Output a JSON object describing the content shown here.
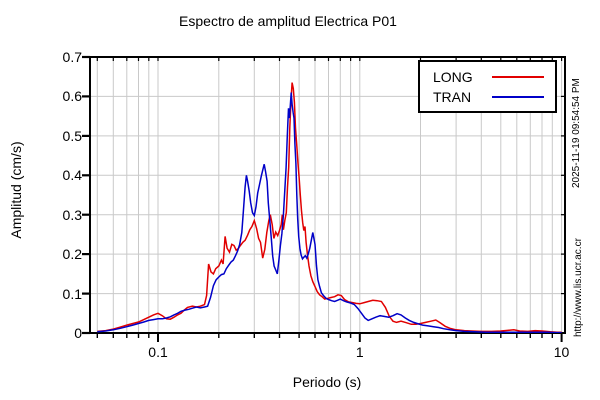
{
  "title": "Espectro de amplitud Electrica P01",
  "stamp": {
    "datetime": "2025-11-19 09:54:54 PM",
    "website": "http://www.lis.ucr.ac.cr"
  },
  "chart_data": {
    "type": "line",
    "title": "Espectro de amplitud Electrica P01",
    "xlabel": "Periodo (s)",
    "ylabel": "Amplitud (cm/s)",
    "xscale": "log",
    "xlim": [
      0.046,
      10.4
    ],
    "ylim": [
      0,
      0.7
    ],
    "grid": true,
    "legend_position": "top-right",
    "x_ticks": [
      {
        "value": 0.1,
        "label": "0.1"
      },
      {
        "value": 1,
        "label": "1"
      },
      {
        "value": 10,
        "label": "10"
      }
    ],
    "y_ticks": [
      {
        "value": 0,
        "label": "0"
      },
      {
        "value": 0.1,
        "label": "0.1"
      },
      {
        "value": 0.2,
        "label": "0.2"
      },
      {
        "value": 0.3,
        "label": "0.3"
      },
      {
        "value": 0.4,
        "label": "0.4"
      },
      {
        "value": 0.5,
        "label": "0.5"
      },
      {
        "value": 0.6,
        "label": "0.6"
      },
      {
        "value": 0.7,
        "label": "0.7"
      }
    ],
    "colors": {
      "grid": "#c9c9c9",
      "border": "#000000",
      "background": "#ffffff"
    },
    "series": [
      {
        "name": "LONG",
        "color": "#e10000",
        "points": [
          [
            0.05,
            0.004
          ],
          [
            0.055,
            0.006
          ],
          [
            0.06,
            0.01
          ],
          [
            0.065,
            0.015
          ],
          [
            0.07,
            0.02
          ],
          [
            0.075,
            0.024
          ],
          [
            0.08,
            0.028
          ],
          [
            0.085,
            0.034
          ],
          [
            0.09,
            0.04
          ],
          [
            0.095,
            0.046
          ],
          [
            0.1,
            0.05
          ],
          [
            0.105,
            0.044
          ],
          [
            0.11,
            0.036
          ],
          [
            0.115,
            0.035
          ],
          [
            0.12,
            0.04
          ],
          [
            0.125,
            0.046
          ],
          [
            0.13,
            0.05
          ],
          [
            0.135,
            0.058
          ],
          [
            0.14,
            0.065
          ],
          [
            0.148,
            0.068
          ],
          [
            0.155,
            0.066
          ],
          [
            0.162,
            0.068
          ],
          [
            0.17,
            0.072
          ],
          [
            0.174,
            0.095
          ],
          [
            0.178,
            0.175
          ],
          [
            0.183,
            0.155
          ],
          [
            0.188,
            0.15
          ],
          [
            0.193,
            0.163
          ],
          [
            0.2,
            0.17
          ],
          [
            0.206,
            0.185
          ],
          [
            0.21,
            0.175
          ],
          [
            0.215,
            0.245
          ],
          [
            0.22,
            0.215
          ],
          [
            0.226,
            0.205
          ],
          [
            0.232,
            0.225
          ],
          [
            0.238,
            0.222
          ],
          [
            0.244,
            0.21
          ],
          [
            0.25,
            0.214
          ],
          [
            0.256,
            0.222
          ],
          [
            0.263,
            0.23
          ],
          [
            0.27,
            0.235
          ],
          [
            0.278,
            0.248
          ],
          [
            0.285,
            0.262
          ],
          [
            0.292,
            0.27
          ],
          [
            0.3,
            0.285
          ],
          [
            0.308,
            0.265
          ],
          [
            0.315,
            0.24
          ],
          [
            0.322,
            0.23
          ],
          [
            0.33,
            0.19
          ],
          [
            0.338,
            0.212
          ],
          [
            0.346,
            0.255
          ],
          [
            0.354,
            0.285
          ],
          [
            0.36,
            0.3
          ],
          [
            0.368,
            0.275
          ],
          [
            0.375,
            0.24
          ],
          [
            0.383,
            0.256
          ],
          [
            0.392,
            0.247
          ],
          [
            0.4,
            0.26
          ],
          [
            0.408,
            0.275
          ],
          [
            0.413,
            0.3
          ],
          [
            0.418,
            0.262
          ],
          [
            0.425,
            0.285
          ],
          [
            0.432,
            0.305
          ],
          [
            0.438,
            0.37
          ],
          [
            0.444,
            0.42
          ],
          [
            0.45,
            0.52
          ],
          [
            0.456,
            0.59
          ],
          [
            0.462,
            0.635
          ],
          [
            0.468,
            0.62
          ],
          [
            0.474,
            0.585
          ],
          [
            0.48,
            0.52
          ],
          [
            0.487,
            0.475
          ],
          [
            0.494,
            0.43
          ],
          [
            0.5,
            0.395
          ],
          [
            0.507,
            0.35
          ],
          [
            0.514,
            0.31
          ],
          [
            0.521,
            0.28
          ],
          [
            0.528,
            0.26
          ],
          [
            0.535,
            0.27
          ],
          [
            0.542,
            0.23
          ],
          [
            0.55,
            0.2
          ],
          [
            0.56,
            0.17
          ],
          [
            0.572,
            0.145
          ],
          [
            0.585,
            0.13
          ],
          [
            0.6,
            0.118
          ],
          [
            0.615,
            0.105
          ],
          [
            0.632,
            0.097
          ],
          [
            0.65,
            0.092
          ],
          [
            0.67,
            0.086
          ],
          [
            0.695,
            0.088
          ],
          [
            0.72,
            0.09
          ],
          [
            0.75,
            0.092
          ],
          [
            0.78,
            0.097
          ],
          [
            0.81,
            0.095
          ],
          [
            0.84,
            0.085
          ],
          [
            0.88,
            0.079
          ],
          [
            0.92,
            0.077
          ],
          [
            0.96,
            0.075
          ],
          [
            1.0,
            0.074
          ],
          [
            1.05,
            0.077
          ],
          [
            1.1,
            0.08
          ],
          [
            1.16,
            0.083
          ],
          [
            1.22,
            0.082
          ],
          [
            1.28,
            0.08
          ],
          [
            1.34,
            0.065
          ],
          [
            1.4,
            0.042
          ],
          [
            1.46,
            0.03
          ],
          [
            1.52,
            0.027
          ],
          [
            1.6,
            0.03
          ],
          [
            1.7,
            0.026
          ],
          [
            1.8,
            0.022
          ],
          [
            1.9,
            0.022
          ],
          [
            2.0,
            0.024
          ],
          [
            2.12,
            0.027
          ],
          [
            2.25,
            0.03
          ],
          [
            2.38,
            0.033
          ],
          [
            2.5,
            0.026
          ],
          [
            2.65,
            0.017
          ],
          [
            2.8,
            0.012
          ],
          [
            3.0,
            0.008
          ],
          [
            3.3,
            0.006
          ],
          [
            3.6,
            0.005
          ],
          [
            4.0,
            0.004
          ],
          [
            4.5,
            0.004
          ],
          [
            5.0,
            0.005
          ],
          [
            5.5,
            0.007
          ],
          [
            5.8,
            0.008
          ],
          [
            6.2,
            0.005
          ],
          [
            6.8,
            0.004
          ],
          [
            7.4,
            0.006
          ],
          [
            8.0,
            0.005
          ],
          [
            8.8,
            0.003
          ],
          [
            9.5,
            0.002
          ],
          [
            10.0,
            0.002
          ]
        ]
      },
      {
        "name": "TRAN",
        "color": "#0000c8",
        "points": [
          [
            0.05,
            0.003
          ],
          [
            0.055,
            0.005
          ],
          [
            0.06,
            0.008
          ],
          [
            0.065,
            0.012
          ],
          [
            0.07,
            0.016
          ],
          [
            0.075,
            0.02
          ],
          [
            0.08,
            0.024
          ],
          [
            0.085,
            0.028
          ],
          [
            0.09,
            0.032
          ],
          [
            0.095,
            0.034
          ],
          [
            0.1,
            0.036
          ],
          [
            0.105,
            0.036
          ],
          [
            0.11,
            0.038
          ],
          [
            0.115,
            0.041
          ],
          [
            0.12,
            0.046
          ],
          [
            0.125,
            0.05
          ],
          [
            0.13,
            0.055
          ],
          [
            0.136,
            0.058
          ],
          [
            0.142,
            0.06
          ],
          [
            0.148,
            0.063
          ],
          [
            0.155,
            0.066
          ],
          [
            0.162,
            0.064
          ],
          [
            0.17,
            0.066
          ],
          [
            0.176,
            0.068
          ],
          [
            0.182,
            0.09
          ],
          [
            0.188,
            0.12
          ],
          [
            0.194,
            0.135
          ],
          [
            0.2,
            0.142
          ],
          [
            0.206,
            0.148
          ],
          [
            0.212,
            0.15
          ],
          [
            0.218,
            0.163
          ],
          [
            0.224,
            0.172
          ],
          [
            0.23,
            0.18
          ],
          [
            0.236,
            0.185
          ],
          [
            0.242,
            0.196
          ],
          [
            0.248,
            0.208
          ],
          [
            0.254,
            0.225
          ],
          [
            0.26,
            0.255
          ],
          [
            0.265,
            0.31
          ],
          [
            0.27,
            0.37
          ],
          [
            0.274,
            0.4
          ],
          [
            0.278,
            0.385
          ],
          [
            0.283,
            0.36
          ],
          [
            0.288,
            0.33
          ],
          [
            0.294,
            0.305
          ],
          [
            0.3,
            0.298
          ],
          [
            0.306,
            0.32
          ],
          [
            0.312,
            0.355
          ],
          [
            0.318,
            0.375
          ],
          [
            0.325,
            0.398
          ],
          [
            0.331,
            0.415
          ],
          [
            0.336,
            0.428
          ],
          [
            0.341,
            0.41
          ],
          [
            0.347,
            0.385
          ],
          [
            0.352,
            0.33
          ],
          [
            0.358,
            0.285
          ],
          [
            0.364,
            0.24
          ],
          [
            0.37,
            0.195
          ],
          [
            0.376,
            0.17
          ],
          [
            0.383,
            0.16
          ],
          [
            0.39,
            0.15
          ],
          [
            0.397,
            0.185
          ],
          [
            0.404,
            0.222
          ],
          [
            0.411,
            0.252
          ],
          [
            0.418,
            0.3
          ],
          [
            0.425,
            0.362
          ],
          [
            0.431,
            0.42
          ],
          [
            0.437,
            0.5
          ],
          [
            0.443,
            0.57
          ],
          [
            0.448,
            0.545
          ],
          [
            0.453,
            0.58
          ],
          [
            0.457,
            0.61
          ],
          [
            0.462,
            0.58
          ],
          [
            0.467,
            0.56
          ],
          [
            0.472,
            0.545
          ],
          [
            0.477,
            0.48
          ],
          [
            0.482,
            0.43
          ],
          [
            0.487,
            0.35
          ],
          [
            0.492,
            0.29
          ],
          [
            0.498,
            0.245
          ],
          [
            0.505,
            0.215
          ],
          [
            0.512,
            0.198
          ],
          [
            0.52,
            0.188
          ],
          [
            0.528,
            0.192
          ],
          [
            0.537,
            0.196
          ],
          [
            0.546,
            0.19
          ],
          [
            0.555,
            0.2
          ],
          [
            0.565,
            0.215
          ],
          [
            0.575,
            0.235
          ],
          [
            0.585,
            0.255
          ],
          [
            0.592,
            0.24
          ],
          [
            0.6,
            0.225
          ],
          [
            0.61,
            0.17
          ],
          [
            0.62,
            0.135
          ],
          [
            0.632,
            0.118
          ],
          [
            0.645,
            0.102
          ],
          [
            0.66,
            0.095
          ],
          [
            0.68,
            0.088
          ],
          [
            0.7,
            0.085
          ],
          [
            0.725,
            0.082
          ],
          [
            0.75,
            0.08
          ],
          [
            0.775,
            0.083
          ],
          [
            0.8,
            0.086
          ],
          [
            0.83,
            0.082
          ],
          [
            0.86,
            0.079
          ],
          [
            0.9,
            0.076
          ],
          [
            0.94,
            0.072
          ],
          [
            0.98,
            0.062
          ],
          [
            1.02,
            0.05
          ],
          [
            1.06,
            0.038
          ],
          [
            1.1,
            0.032
          ],
          [
            1.15,
            0.036
          ],
          [
            1.2,
            0.04
          ],
          [
            1.26,
            0.044
          ],
          [
            1.32,
            0.042
          ],
          [
            1.39,
            0.04
          ],
          [
            1.46,
            0.044
          ],
          [
            1.53,
            0.049
          ],
          [
            1.6,
            0.046
          ],
          [
            1.68,
            0.038
          ],
          [
            1.76,
            0.032
          ],
          [
            1.85,
            0.027
          ],
          [
            1.95,
            0.023
          ],
          [
            2.05,
            0.02
          ],
          [
            2.18,
            0.018
          ],
          [
            2.32,
            0.016
          ],
          [
            2.46,
            0.014
          ],
          [
            2.6,
            0.011
          ],
          [
            2.8,
            0.008
          ],
          [
            3.0,
            0.006
          ],
          [
            3.3,
            0.004
          ],
          [
            3.7,
            0.003
          ],
          [
            4.2,
            0.002
          ],
          [
            4.8,
            0.002
          ],
          [
            5.5,
            0.002
          ],
          [
            6.5,
            0.002
          ],
          [
            7.5,
            0.002
          ],
          [
            8.5,
            0.002
          ],
          [
            9.5,
            0.001
          ],
          [
            10.0,
            0.001
          ]
        ]
      }
    ]
  }
}
